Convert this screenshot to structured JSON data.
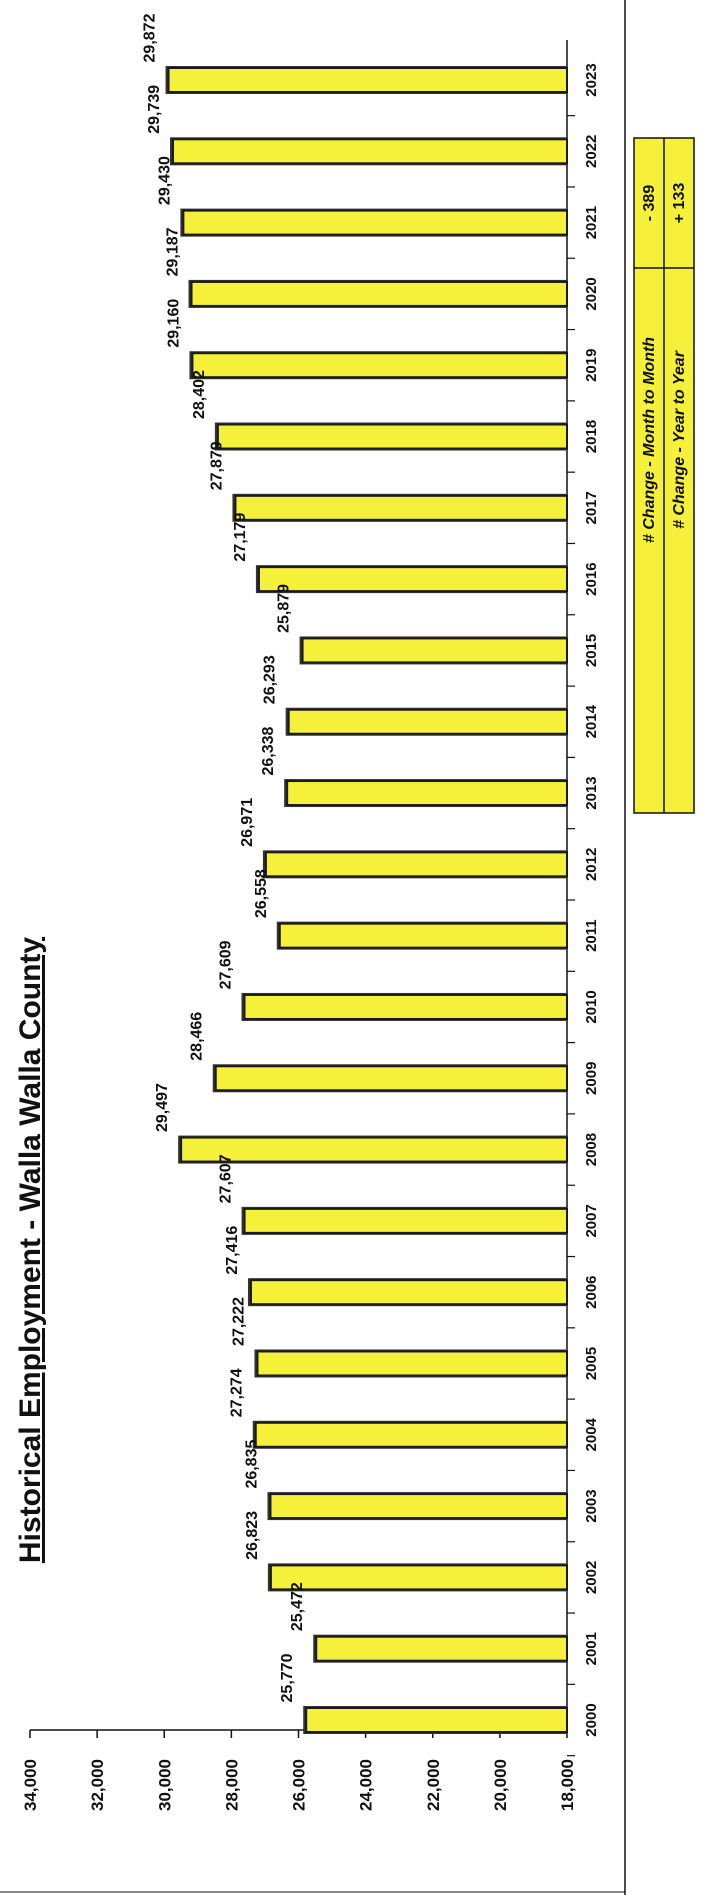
{
  "chart_data": {
    "type": "bar",
    "title": "Historical Employment - Walla Walla County",
    "categories": [
      "2000",
      "2001",
      "2002",
      "2003",
      "2004",
      "2005",
      "2006",
      "2007",
      "2008",
      "2009",
      "2010",
      "2011",
      "2012",
      "2013",
      "2014",
      "2015",
      "2016",
      "2017",
      "2018",
      "2019",
      "2020",
      "2021",
      "2022",
      "2023"
    ],
    "values": [
      25770,
      25472,
      26823,
      26835,
      27274,
      27222,
      27416,
      27607,
      29497,
      28466,
      27609,
      26558,
      26971,
      26338,
      26293,
      25879,
      27179,
      27879,
      28402,
      29160,
      29187,
      29430,
      29739,
      29872
    ],
    "data_labels": [
      "25,770",
      "25,472",
      "26,823",
      "26,835",
      "27,274",
      "27,222",
      "27,416",
      "27,607",
      "29,497",
      "28,466",
      "27,609",
      "26,558",
      "26,971",
      "26,338",
      "26,293",
      "25,879",
      "27,179",
      "27,879",
      "28,402",
      "29,160",
      "29,187",
      "29,430",
      "29,739",
      "29,872"
    ],
    "ylim": [
      18000,
      34000
    ],
    "yticks": [
      "18,000",
      "20,000",
      "22,000",
      "24,000",
      "26,000",
      "28,000",
      "30,000",
      "32,000",
      "34,000"
    ],
    "ytick_values": [
      18000,
      20000,
      22000,
      24000,
      26000,
      28000,
      30000,
      32000,
      34000
    ],
    "xlabel": "",
    "ylabel": "",
    "grid": false,
    "orientation": "rotated 90 degrees clockwise",
    "colors": {
      "bar_fill": "#f5f03a",
      "bar_border": "#1a1a1a",
      "shadow": "#333333"
    }
  },
  "summary_box": {
    "rows": [
      {
        "label": "# Change - Month to Month",
        "value": "- 389"
      },
      {
        "label": "# Change - Year to Year",
        "value": "+ 133"
      }
    ],
    "fill": "#f5f03a"
  }
}
